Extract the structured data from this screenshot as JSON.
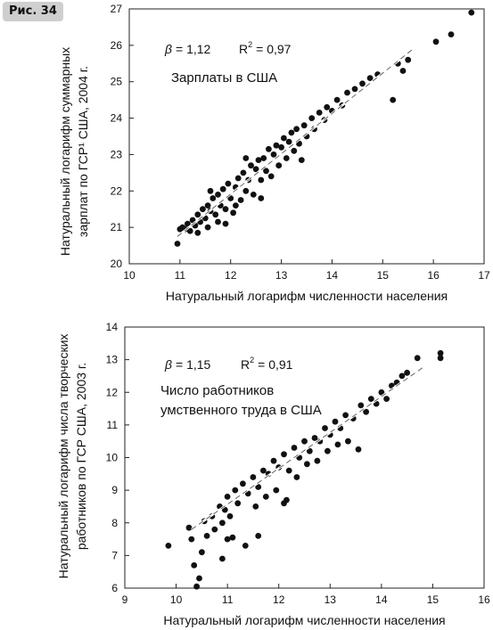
{
  "figure_label": "Рис. 34",
  "chart_data": [
    {
      "type": "scatter",
      "xlabel": "Натуральный логарифм численности населения",
      "ylabel_lines": [
        "Натуральный логарифм суммарных",
        "зарплат по ГСР¹ США, 2004 г."
      ],
      "xlim": [
        10,
        17
      ],
      "ylim": [
        20,
        27
      ],
      "xticks": [
        "10",
        "11",
        "12",
        "13",
        "14",
        "15",
        "16",
        "17"
      ],
      "yticks": [
        "20",
        "21",
        "22",
        "23",
        "24",
        "25",
        "26",
        "27"
      ],
      "beta_symbol": "β",
      "beta_value": "= 1,12",
      "r2_base": "R",
      "r2_exp": "2",
      "r2_value": "= 0,97",
      "annotation_lines": [
        "Зарплаты в США"
      ],
      "fit": {
        "x0": 10.95,
        "y0": 20.75,
        "x1": 15.6,
        "y1": 25.9
      },
      "points": [
        [
          10.95,
          20.55
        ],
        [
          11.0,
          20.95
        ],
        [
          11.05,
          21.0
        ],
        [
          11.1,
          20.95
        ],
        [
          11.15,
          21.1
        ],
        [
          11.2,
          20.9
        ],
        [
          11.25,
          21.2
        ],
        [
          11.3,
          21.05
        ],
        [
          11.35,
          21.35
        ],
        [
          11.4,
          21.15
        ],
        [
          11.45,
          21.5
        ],
        [
          11.5,
          21.25
        ],
        [
          11.55,
          21.6
        ],
        [
          11.55,
          21.0
        ],
        [
          11.6,
          21.45
        ],
        [
          11.65,
          21.8
        ],
        [
          11.7,
          21.35
        ],
        [
          11.75,
          21.9
        ],
        [
          11.75,
          21.15
        ],
        [
          11.8,
          21.6
        ],
        [
          11.85,
          22.05
        ],
        [
          11.9,
          21.5
        ],
        [
          11.95,
          22.2
        ],
        [
          12.0,
          21.8
        ],
        [
          12.05,
          21.4
        ],
        [
          12.1,
          22.1
        ],
        [
          12.15,
          22.35
        ],
        [
          12.2,
          21.75
        ],
        [
          12.25,
          22.5
        ],
        [
          12.3,
          22.0
        ],
        [
          12.35,
          22.3
        ],
        [
          12.4,
          22.7
        ],
        [
          12.45,
          21.9
        ],
        [
          12.5,
          22.6
        ],
        [
          12.55,
          22.85
        ],
        [
          12.6,
          22.3
        ],
        [
          12.65,
          22.9
        ],
        [
          12.7,
          22.55
        ],
        [
          12.75,
          23.15
        ],
        [
          12.8,
          22.4
        ],
        [
          12.85,
          23.0
        ],
        [
          12.9,
          23.25
        ],
        [
          12.95,
          22.7
        ],
        [
          13.0,
          23.2
        ],
        [
          13.05,
          23.45
        ],
        [
          13.1,
          22.9
        ],
        [
          13.15,
          23.35
        ],
        [
          13.2,
          23.6
        ],
        [
          13.25,
          23.1
        ],
        [
          13.3,
          23.7
        ],
        [
          13.35,
          23.3
        ],
        [
          13.45,
          23.8
        ],
        [
          13.5,
          23.5
        ],
        [
          13.6,
          24.0
        ],
        [
          13.65,
          23.7
        ],
        [
          13.75,
          24.15
        ],
        [
          13.85,
          23.95
        ],
        [
          13.9,
          24.3
        ],
        [
          14.0,
          24.2
        ],
        [
          14.1,
          24.5
        ],
        [
          14.2,
          24.35
        ],
        [
          14.3,
          24.7
        ],
        [
          14.45,
          24.8
        ],
        [
          14.6,
          24.95
        ],
        [
          14.75,
          25.1
        ],
        [
          14.9,
          25.2
        ],
        [
          15.2,
          24.5
        ],
        [
          15.3,
          25.5
        ],
        [
          15.4,
          25.3
        ],
        [
          15.5,
          25.6
        ],
        [
          16.05,
          26.1
        ],
        [
          16.35,
          26.3
        ],
        [
          16.75,
          26.9
        ],
        [
          11.35,
          20.85
        ],
        [
          11.9,
          21.1
        ],
        [
          12.1,
          21.6
        ],
        [
          12.6,
          21.8
        ],
        [
          13.4,
          22.85
        ],
        [
          11.6,
          22.0
        ],
        [
          12.3,
          22.9
        ]
      ]
    },
    {
      "type": "scatter",
      "xlabel": "Натуральный логарифм численности населения",
      "ylabel_lines": [
        "Натуральный логарифм числа творческих",
        "работников по ГСР США, 2003 г."
      ],
      "xlim": [
        9,
        16
      ],
      "ylim": [
        6,
        14
      ],
      "xticks": [
        "9",
        "10",
        "11",
        "12",
        "13",
        "14",
        "15",
        "16"
      ],
      "yticks": [
        "6",
        "7",
        "8",
        "9",
        "10",
        "11",
        "12",
        "13",
        "14"
      ],
      "beta_symbol": "β",
      "beta_value": "= 1,15",
      "r2_base": "R",
      "r2_exp": "2",
      "r2_value": "= 0,91",
      "annotation_lines": [
        "Число работников",
        "умственного труда в США"
      ],
      "fit": {
        "x0": 10.3,
        "y0": 7.8,
        "x1": 14.8,
        "y1": 12.75
      },
      "points": [
        [
          9.85,
          7.3
        ],
        [
          10.25,
          7.85
        ],
        [
          10.3,
          7.5
        ],
        [
          10.35,
          6.7
        ],
        [
          10.4,
          6.05
        ],
        [
          10.45,
          6.3
        ],
        [
          10.5,
          7.1
        ],
        [
          10.55,
          8.05
        ],
        [
          10.6,
          7.6
        ],
        [
          10.7,
          8.2
        ],
        [
          10.75,
          7.8
        ],
        [
          10.85,
          8.5
        ],
        [
          10.9,
          8.0
        ],
        [
          10.95,
          8.4
        ],
        [
          11.0,
          8.8
        ],
        [
          11.05,
          8.2
        ],
        [
          11.1,
          7.55
        ],
        [
          11.15,
          9.0
        ],
        [
          11.2,
          8.6
        ],
        [
          11.3,
          9.2
        ],
        [
          11.35,
          7.3
        ],
        [
          11.4,
          8.9
        ],
        [
          11.5,
          9.4
        ],
        [
          11.55,
          8.5
        ],
        [
          11.6,
          9.1
        ],
        [
          11.7,
          9.6
        ],
        [
          11.75,
          8.8
        ],
        [
          11.8,
          9.5
        ],
        [
          11.9,
          9.9
        ],
        [
          11.95,
          9.0
        ],
        [
          12.0,
          9.7
        ],
        [
          12.1,
          10.1
        ],
        [
          12.15,
          8.7
        ],
        [
          12.2,
          9.6
        ],
        [
          12.3,
          10.3
        ],
        [
          12.35,
          9.4
        ],
        [
          12.4,
          10.0
        ],
        [
          12.5,
          10.5
        ],
        [
          12.55,
          9.8
        ],
        [
          12.6,
          10.2
        ],
        [
          12.7,
          10.6
        ],
        [
          12.75,
          9.9
        ],
        [
          12.8,
          10.5
        ],
        [
          12.9,
          10.9
        ],
        [
          12.95,
          10.2
        ],
        [
          13.0,
          10.7
        ],
        [
          13.1,
          11.1
        ],
        [
          13.15,
          10.4
        ],
        [
          13.2,
          10.9
        ],
        [
          13.3,
          11.3
        ],
        [
          13.35,
          10.5
        ],
        [
          13.45,
          11.2
        ],
        [
          13.55,
          10.25
        ],
        [
          13.6,
          11.6
        ],
        [
          13.7,
          11.4
        ],
        [
          13.8,
          11.8
        ],
        [
          13.9,
          11.65
        ],
        [
          14.0,
          12.0
        ],
        [
          14.1,
          11.8
        ],
        [
          14.2,
          12.2
        ],
        [
          14.3,
          12.3
        ],
        [
          14.4,
          12.5
        ],
        [
          14.5,
          12.6
        ],
        [
          14.7,
          13.05
        ],
        [
          15.15,
          13.2
        ],
        [
          15.15,
          13.05
        ],
        [
          11.0,
          7.5
        ],
        [
          10.9,
          6.9
        ],
        [
          11.6,
          7.6
        ],
        [
          12.1,
          8.6
        ]
      ]
    }
  ]
}
